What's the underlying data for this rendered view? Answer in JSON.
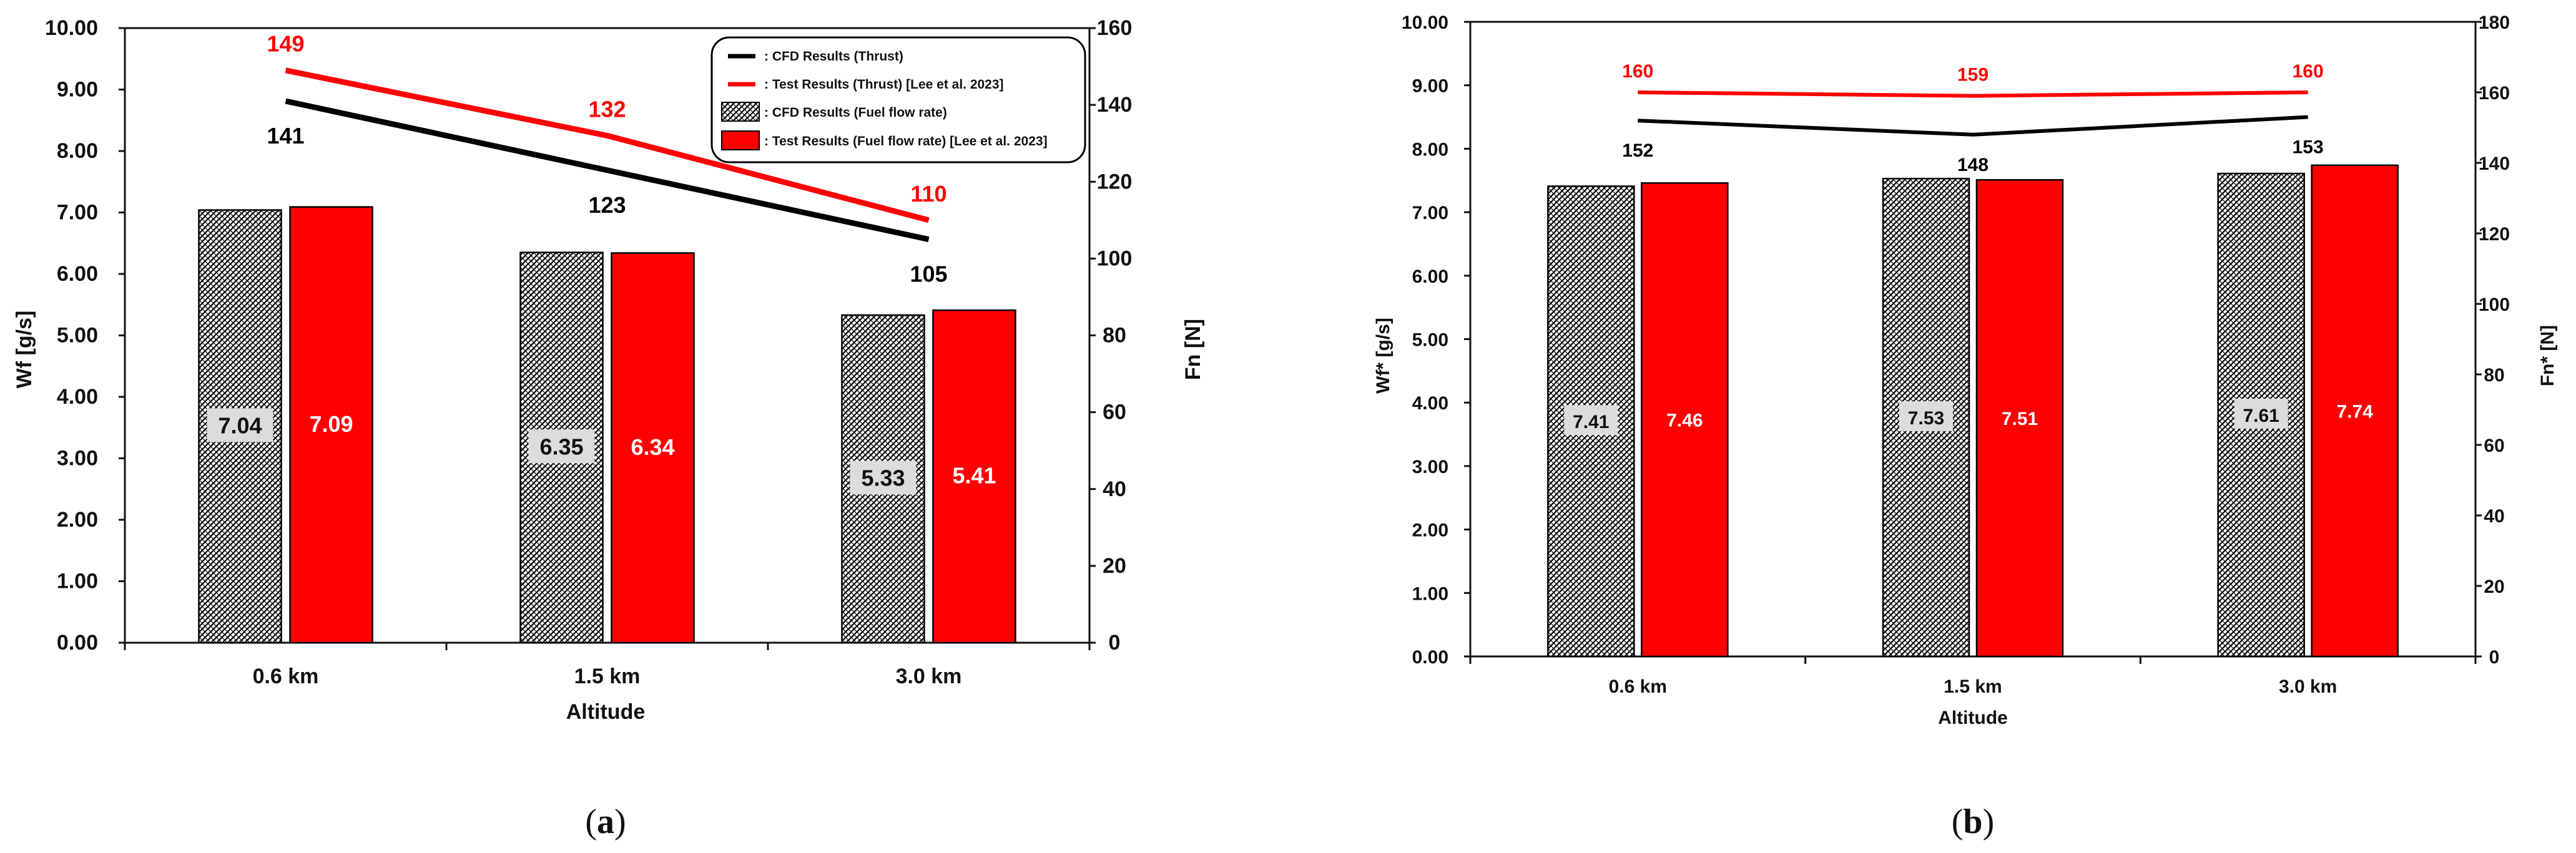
{
  "colors": {
    "cfd": "#000000",
    "test": "#ff0000",
    "axis": "#111111",
    "label_box": "#dcdcdc"
  },
  "chart_data": [
    {
      "type": "bar",
      "panel_label": "a",
      "xlabel": "Altitude",
      "ylabel": "Wf [g/s]",
      "y2label": "Fn [N]",
      "categories": [
        "0.6 km",
        "1.5 km",
        "3.0 km"
      ],
      "ylim": [
        0,
        10
      ],
      "y2lim": [
        0,
        160
      ],
      "yticks": [
        "0.00",
        "1.00",
        "2.00",
        "3.00",
        "4.00",
        "5.00",
        "6.00",
        "7.00",
        "8.00",
        "9.00",
        "10.00"
      ],
      "y2ticks": [
        "0",
        "20",
        "40",
        "60",
        "80",
        "100",
        "120",
        "140",
        "160"
      ],
      "bar_series": [
        {
          "name": ": CFD Results (Fuel flow rate)",
          "values": [
            7.04,
            6.35,
            5.33
          ],
          "labels": [
            "7.04",
            "6.35",
            "5.33"
          ],
          "style": "hatch"
        },
        {
          "name": ": Test Results (Fuel flow rate) [Lee et al. 2023]",
          "values": [
            7.09,
            6.34,
            5.41
          ],
          "labels": [
            "7.09",
            "6.34",
            "5.41"
          ],
          "style": "solid-red"
        }
      ],
      "line_series": [
        {
          "name": ": CFD Results (Thrust)",
          "values": [
            141,
            123,
            105
          ],
          "labels": [
            "141",
            "123",
            "105"
          ],
          "axis": "right",
          "color": "#000000"
        },
        {
          "name": ": Test Results (Thrust) [Lee et al. 2023]",
          "values": [
            149,
            132,
            110
          ],
          "labels": [
            "149",
            "132",
            "110"
          ],
          "axis": "right",
          "color": "#ff0000"
        }
      ],
      "legend": "top-right",
      "grid": false
    },
    {
      "type": "bar",
      "panel_label": "b",
      "xlabel": "Altitude",
      "ylabel": "Wf* [g/s]",
      "y2label": "Fn* [N]",
      "categories": [
        "0.6  km",
        "1.5  km",
        "3.0  km"
      ],
      "ylim": [
        0,
        10
      ],
      "y2lim": [
        0,
        180
      ],
      "yticks": [
        "0.00",
        "1.00",
        "2.00",
        "3.00",
        "4.00",
        "5.00",
        "6.00",
        "7.00",
        "8.00",
        "9.00",
        "10.00"
      ],
      "y2ticks": [
        "0",
        "20",
        "40",
        "60",
        "80",
        "100",
        "120",
        "140",
        "160",
        "180"
      ],
      "bar_series": [
        {
          "values": [
            7.41,
            7.53,
            7.61
          ],
          "labels": [
            "7.41",
            "7.53",
            "7.61"
          ],
          "style": "hatch"
        },
        {
          "values": [
            7.46,
            7.51,
            7.74
          ],
          "labels": [
            "7.46",
            "7.51",
            "7.74"
          ],
          "style": "solid-red"
        }
      ],
      "line_series": [
        {
          "values": [
            152,
            148,
            153
          ],
          "labels": [
            "152",
            "148",
            "153"
          ],
          "axis": "right",
          "color": "#000000"
        },
        {
          "values": [
            160,
            159,
            160
          ],
          "labels": [
            "160",
            "159",
            "160"
          ],
          "axis": "right",
          "color": "#ff0000"
        }
      ],
      "legend": "none",
      "grid": false
    }
  ]
}
